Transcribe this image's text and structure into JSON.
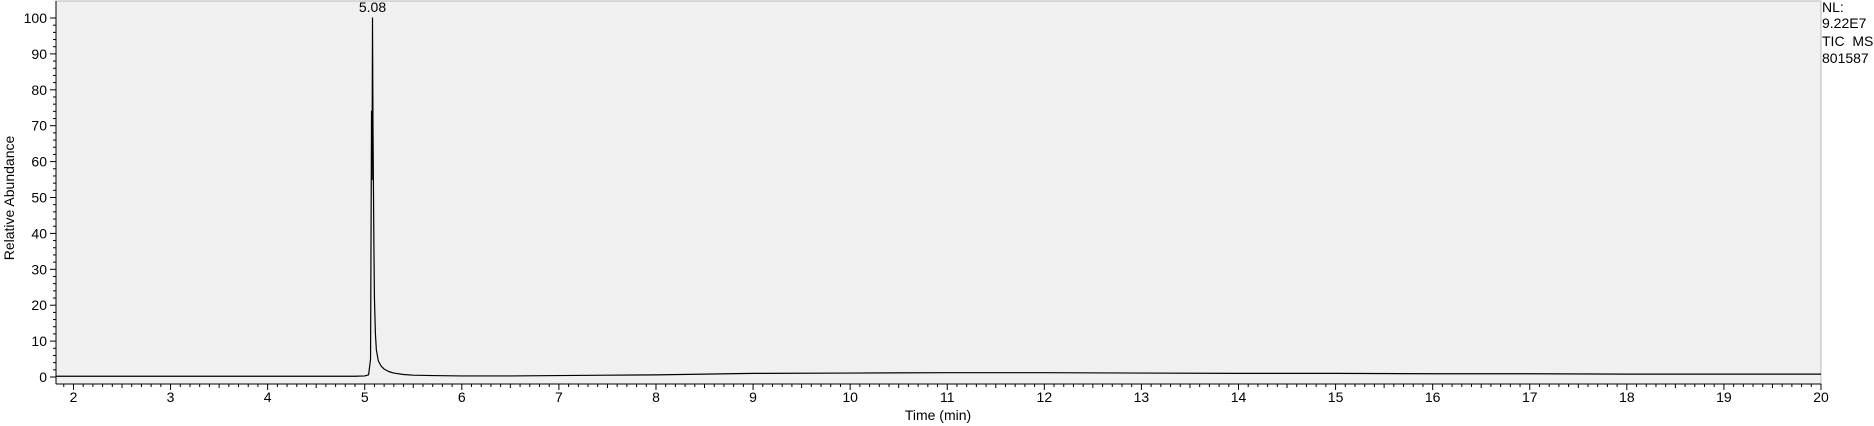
{
  "colors": {
    "plot_background": "#f0f0f0",
    "axis": "#000000",
    "trace": "#000000",
    "page_background": "#ffffff"
  },
  "info_panel": {
    "nl_label": "NL:",
    "nl_value": "9.22E7",
    "trace_type": "TIC  MS",
    "file_name": "801587"
  },
  "chart_data": {
    "type": "line",
    "title": "",
    "xlabel": "Time (min)",
    "ylabel": "Relative Abundance",
    "xlim": [
      1.82,
      20.0
    ],
    "ylim": [
      0,
      100
    ],
    "x_ticks": [
      2,
      3,
      4,
      5,
      6,
      7,
      8,
      9,
      10,
      11,
      12,
      13,
      14,
      15,
      16,
      17,
      18,
      19,
      20
    ],
    "y_ticks": [
      0,
      10,
      20,
      30,
      40,
      50,
      60,
      70,
      80,
      90,
      100
    ],
    "grid": false,
    "legend": "none",
    "annotations": [
      {
        "x": 5.08,
        "text": "5.08"
      }
    ],
    "series": [
      {
        "x": [
          1.82,
          2.5,
          3.0,
          3.5,
          4.0,
          4.5,
          4.9,
          5.0,
          5.04,
          5.06,
          5.07,
          5.075,
          5.08,
          5.085,
          5.09,
          5.095,
          5.1,
          5.11,
          5.12,
          5.14,
          5.17,
          5.2,
          5.25,
          5.3,
          5.4,
          5.5,
          5.7,
          6.0,
          6.5,
          7.0,
          7.5,
          8.0,
          8.5,
          9.0,
          10.0,
          11.0,
          12.0,
          13.0,
          14.0,
          15.0,
          16.0,
          17.0,
          18.0,
          19.0,
          20.0
        ],
        "values": [
          0.2,
          0.2,
          0.2,
          0.2,
          0.2,
          0.2,
          0.2,
          0.3,
          0.6,
          5,
          74,
          55,
          100,
          70,
          52,
          35,
          22,
          12,
          7.5,
          4.5,
          3.0,
          2.2,
          1.5,
          1.1,
          0.7,
          0.5,
          0.4,
          0.3,
          0.3,
          0.4,
          0.5,
          0.6,
          0.8,
          1.0,
          1.1,
          1.2,
          1.2,
          1.1,
          1.0,
          1.0,
          0.9,
          0.9,
          0.8,
          0.8,
          0.8
        ]
      }
    ]
  }
}
